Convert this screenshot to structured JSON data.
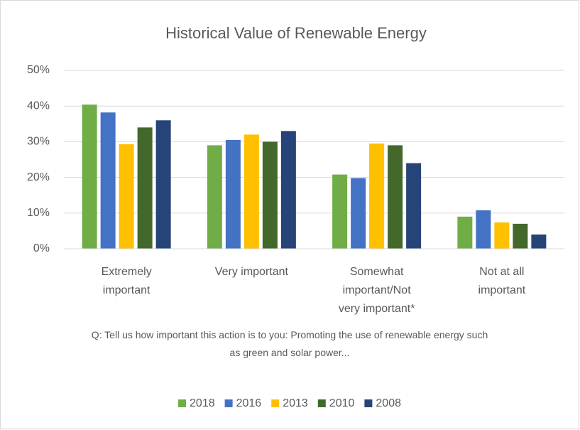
{
  "chart_data": {
    "type": "bar",
    "title": "Historical Value of Renewable Energy",
    "categories": [
      "Extremely important",
      "Very important",
      "Somewhat important/Not very important*",
      "Not at all important"
    ],
    "series": [
      {
        "name": "2018",
        "color": "#70ad47",
        "values": [
          40.4,
          29,
          20.8,
          9
        ]
      },
      {
        "name": "2016",
        "color": "#4472c4",
        "values": [
          38.2,
          30.5,
          19.8,
          10.8
        ]
      },
      {
        "name": "2013",
        "color": "#ffc000",
        "values": [
          29.3,
          32,
          29.5,
          7.4
        ]
      },
      {
        "name": "2010",
        "color": "#43682b",
        "values": [
          34,
          30,
          29,
          7
        ]
      },
      {
        "name": "2008",
        "color": "#264478",
        "values": [
          36,
          33,
          24,
          4
        ]
      }
    ],
    "ylim": [
      0,
      50
    ],
    "yticks": [
      {
        "value": 0,
        "label": "0%"
      },
      {
        "value": 10,
        "label": "10%"
      },
      {
        "value": 20,
        "label": "20%"
      },
      {
        "value": 30,
        "label": "30%"
      },
      {
        "value": 40,
        "label": "40%"
      },
      {
        "value": 50,
        "label": "50%"
      }
    ],
    "grid": true,
    "legend": "bottom",
    "annotation": "Q: Tell us how important this action is to you: Promoting the use of renewable energy such as green and solar power..."
  }
}
